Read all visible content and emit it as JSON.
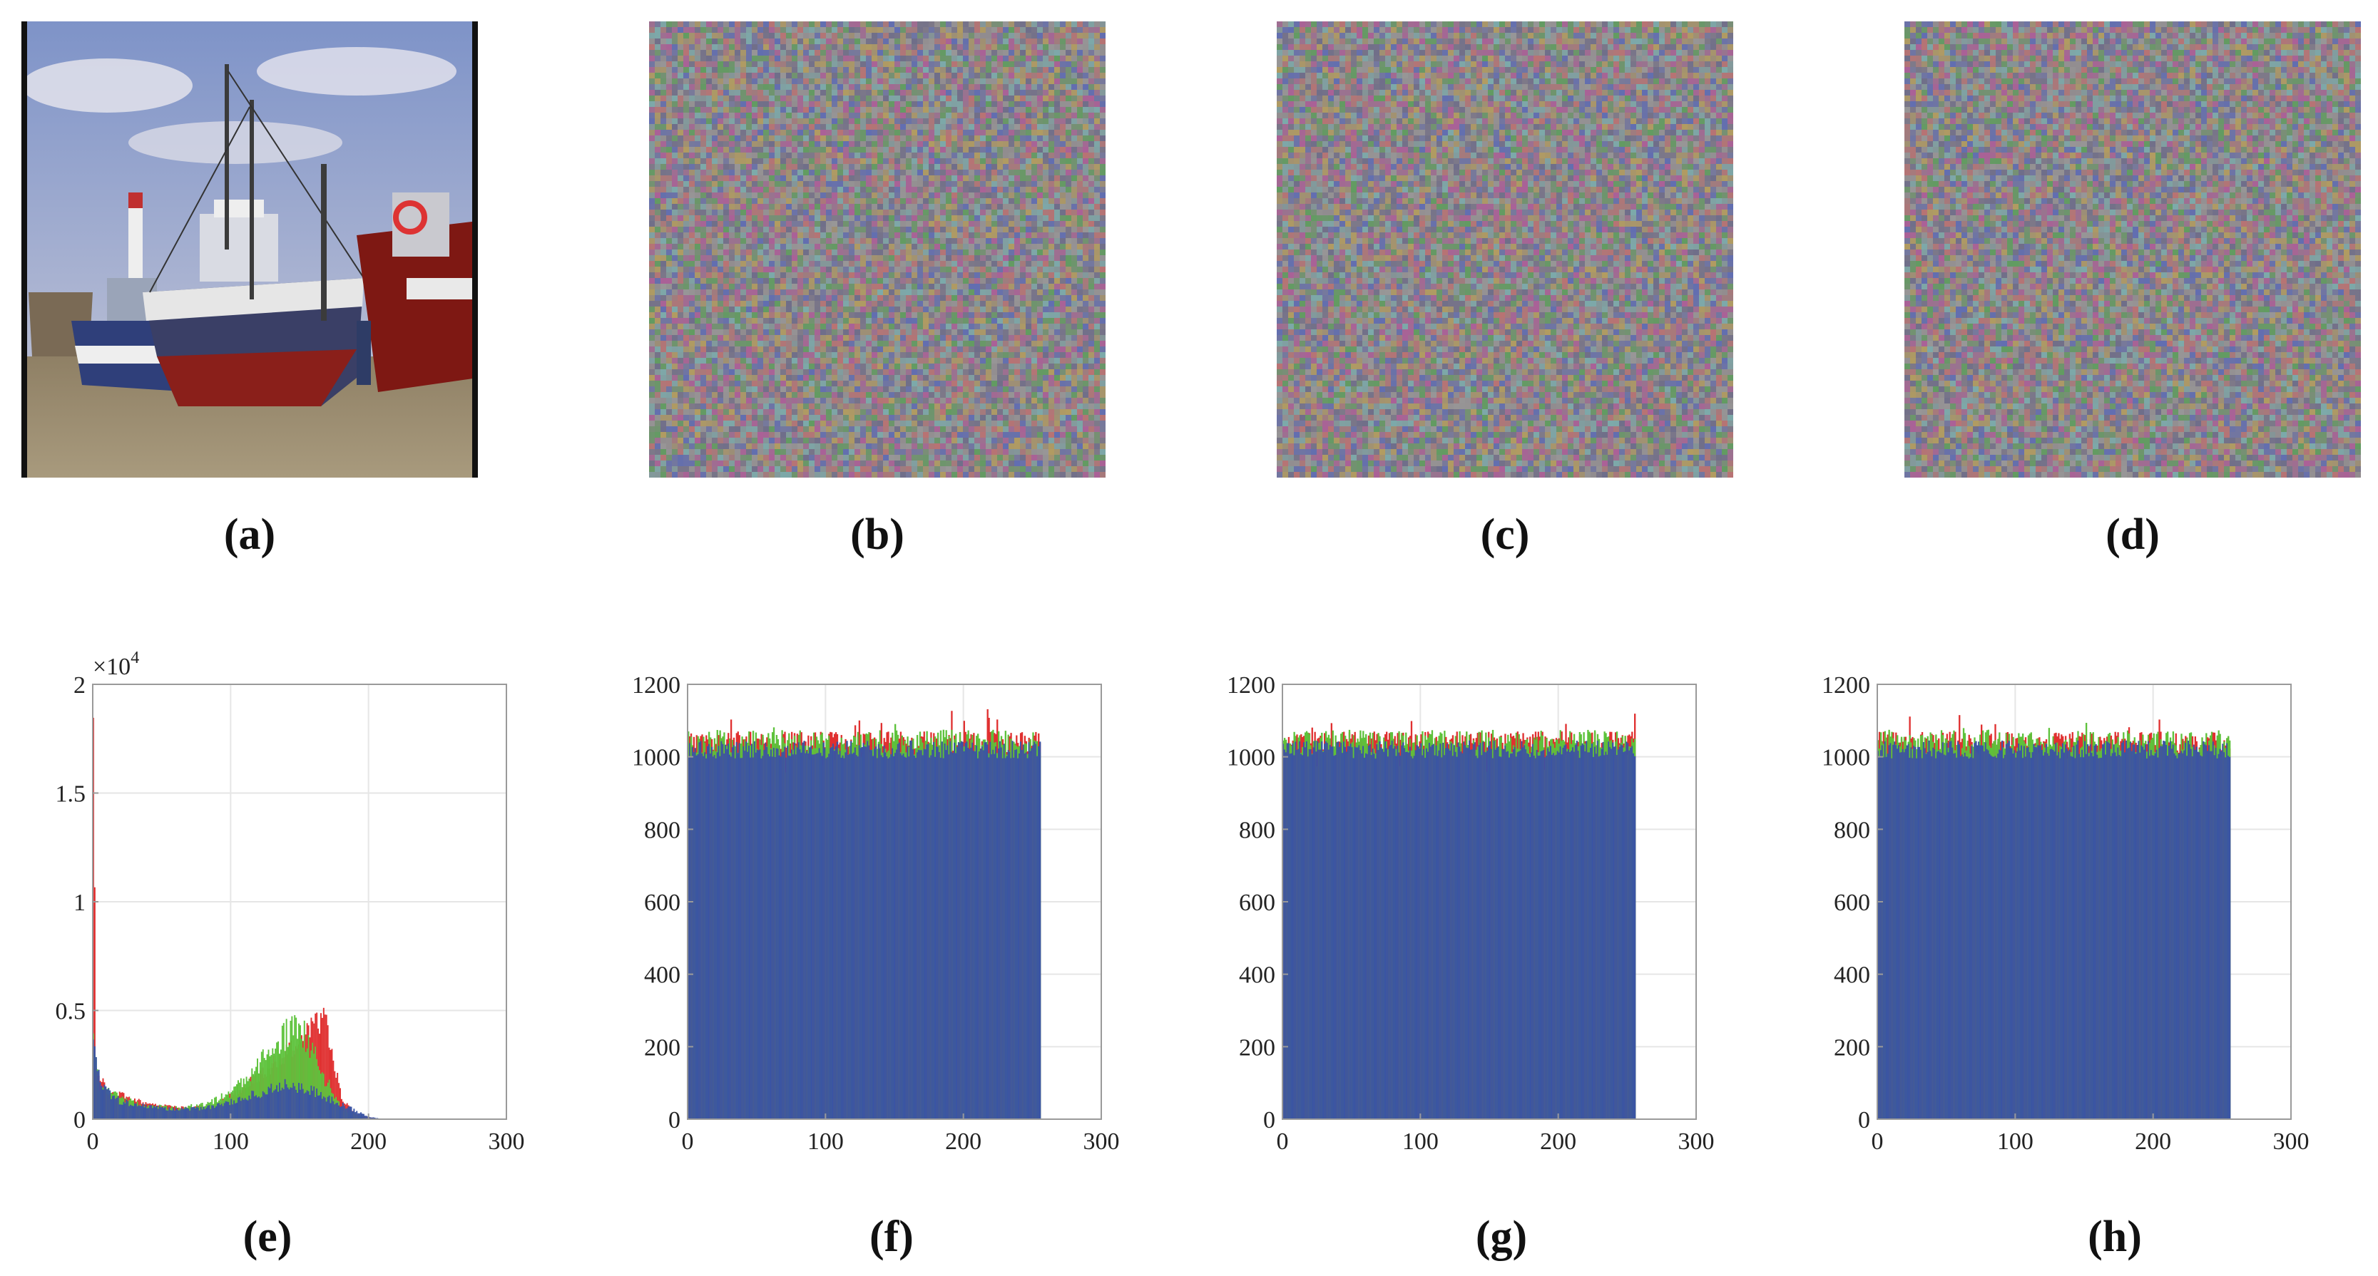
{
  "captions": {
    "a": "(a)",
    "b": "(b)",
    "c": "(c)",
    "d": "(d)",
    "e": "(e)",
    "f": "(f)",
    "g": "(g)",
    "h": "(h)"
  },
  "colors": {
    "red": "#e03030",
    "green": "#5dc23b",
    "blue": "#3a54a4",
    "grid": "#e6e6e6",
    "axis": "#9a9a9a"
  },
  "chart_data": [
    {
      "id": "e",
      "type": "bar",
      "title": "",
      "xlabel": "",
      "ylabel": "",
      "xlim": [
        0,
        300
      ],
      "ylim": [
        0,
        20000
      ],
      "xticks": [
        "0",
        "100",
        "200",
        "300"
      ],
      "yticks": [
        "0",
        "0.5",
        "1",
        "1.5",
        "2"
      ],
      "y_multiplier": "×10",
      "y_multiplier_exp": "4",
      "grid": true,
      "series": [
        {
          "values": [
            {
              "x": 0,
              "y": 19800
            },
            {
              "x": 2,
              "y": 2400
            },
            {
              "x": 10,
              "y": 1300
            },
            {
              "x": 30,
              "y": 900
            },
            {
              "x": 50,
              "y": 600
            },
            {
              "x": 70,
              "y": 500
            },
            {
              "x": 90,
              "y": 700
            },
            {
              "x": 110,
              "y": 1500
            },
            {
              "x": 130,
              "y": 2500
            },
            {
              "x": 150,
              "y": 3600
            },
            {
              "x": 160,
              "y": 4700
            },
            {
              "x": 168,
              "y": 4500
            },
            {
              "x": 180,
              "y": 1000
            },
            {
              "x": 190,
              "y": 200
            },
            {
              "x": 205,
              "y": 30
            }
          ]
        },
        {
          "values": [
            {
              "x": 0,
              "y": 4200
            },
            {
              "x": 5,
              "y": 1600
            },
            {
              "x": 20,
              "y": 900
            },
            {
              "x": 40,
              "y": 600
            },
            {
              "x": 60,
              "y": 500
            },
            {
              "x": 80,
              "y": 650
            },
            {
              "x": 100,
              "y": 1200
            },
            {
              "x": 115,
              "y": 2100
            },
            {
              "x": 130,
              "y": 3300
            },
            {
              "x": 145,
              "y": 4200
            },
            {
              "x": 155,
              "y": 3800
            },
            {
              "x": 165,
              "y": 2200
            },
            {
              "x": 180,
              "y": 500
            },
            {
              "x": 195,
              "y": 100
            },
            {
              "x": 205,
              "y": 10
            }
          ]
        },
        {
          "values": [
            {
              "x": 0,
              "y": 4000
            },
            {
              "x": 5,
              "y": 1500
            },
            {
              "x": 20,
              "y": 800
            },
            {
              "x": 40,
              "y": 550
            },
            {
              "x": 60,
              "y": 450
            },
            {
              "x": 80,
              "y": 500
            },
            {
              "x": 100,
              "y": 800
            },
            {
              "x": 120,
              "y": 1200
            },
            {
              "x": 140,
              "y": 1600
            },
            {
              "x": 160,
              "y": 1300
            },
            {
              "x": 175,
              "y": 800
            },
            {
              "x": 190,
              "y": 400
            },
            {
              "x": 200,
              "y": 100
            },
            {
              "x": 210,
              "y": 10
            }
          ]
        }
      ]
    },
    {
      "id": "f",
      "type": "bar",
      "title": "",
      "xlabel": "",
      "ylabel": "",
      "xlim": [
        0,
        300
      ],
      "ylim": [
        0,
        1200
      ],
      "xticks": [
        "0",
        "100",
        "200",
        "300"
      ],
      "yticks": [
        "0",
        "200",
        "400",
        "600",
        "800",
        "1000",
        "1200"
      ],
      "grid": true,
      "value_range": [
        0,
        255
      ],
      "mean_count": 1040,
      "spread": [
        970,
        1135
      ]
    },
    {
      "id": "g",
      "type": "bar",
      "title": "",
      "xlabel": "",
      "ylabel": "",
      "xlim": [
        0,
        300
      ],
      "ylim": [
        0,
        1200
      ],
      "xticks": [
        "0",
        "100",
        "200",
        "300"
      ],
      "yticks": [
        "0",
        "200",
        "400",
        "600",
        "800",
        "1000",
        "1200"
      ],
      "grid": true,
      "value_range": [
        0,
        255
      ],
      "mean_count": 1040,
      "spread": [
        975,
        1115
      ]
    },
    {
      "id": "h",
      "type": "bar",
      "title": "",
      "xlabel": "",
      "ylabel": "",
      "xlim": [
        0,
        300
      ],
      "ylim": [
        0,
        1200
      ],
      "xticks": [
        "0",
        "100",
        "200",
        "300"
      ],
      "yticks": [
        "0",
        "200",
        "400",
        "600",
        "800",
        "1000",
        "1200"
      ],
      "grid": true,
      "value_range": [
        0,
        255
      ],
      "mean_count": 1040,
      "spread": [
        975,
        1115
      ]
    }
  ]
}
